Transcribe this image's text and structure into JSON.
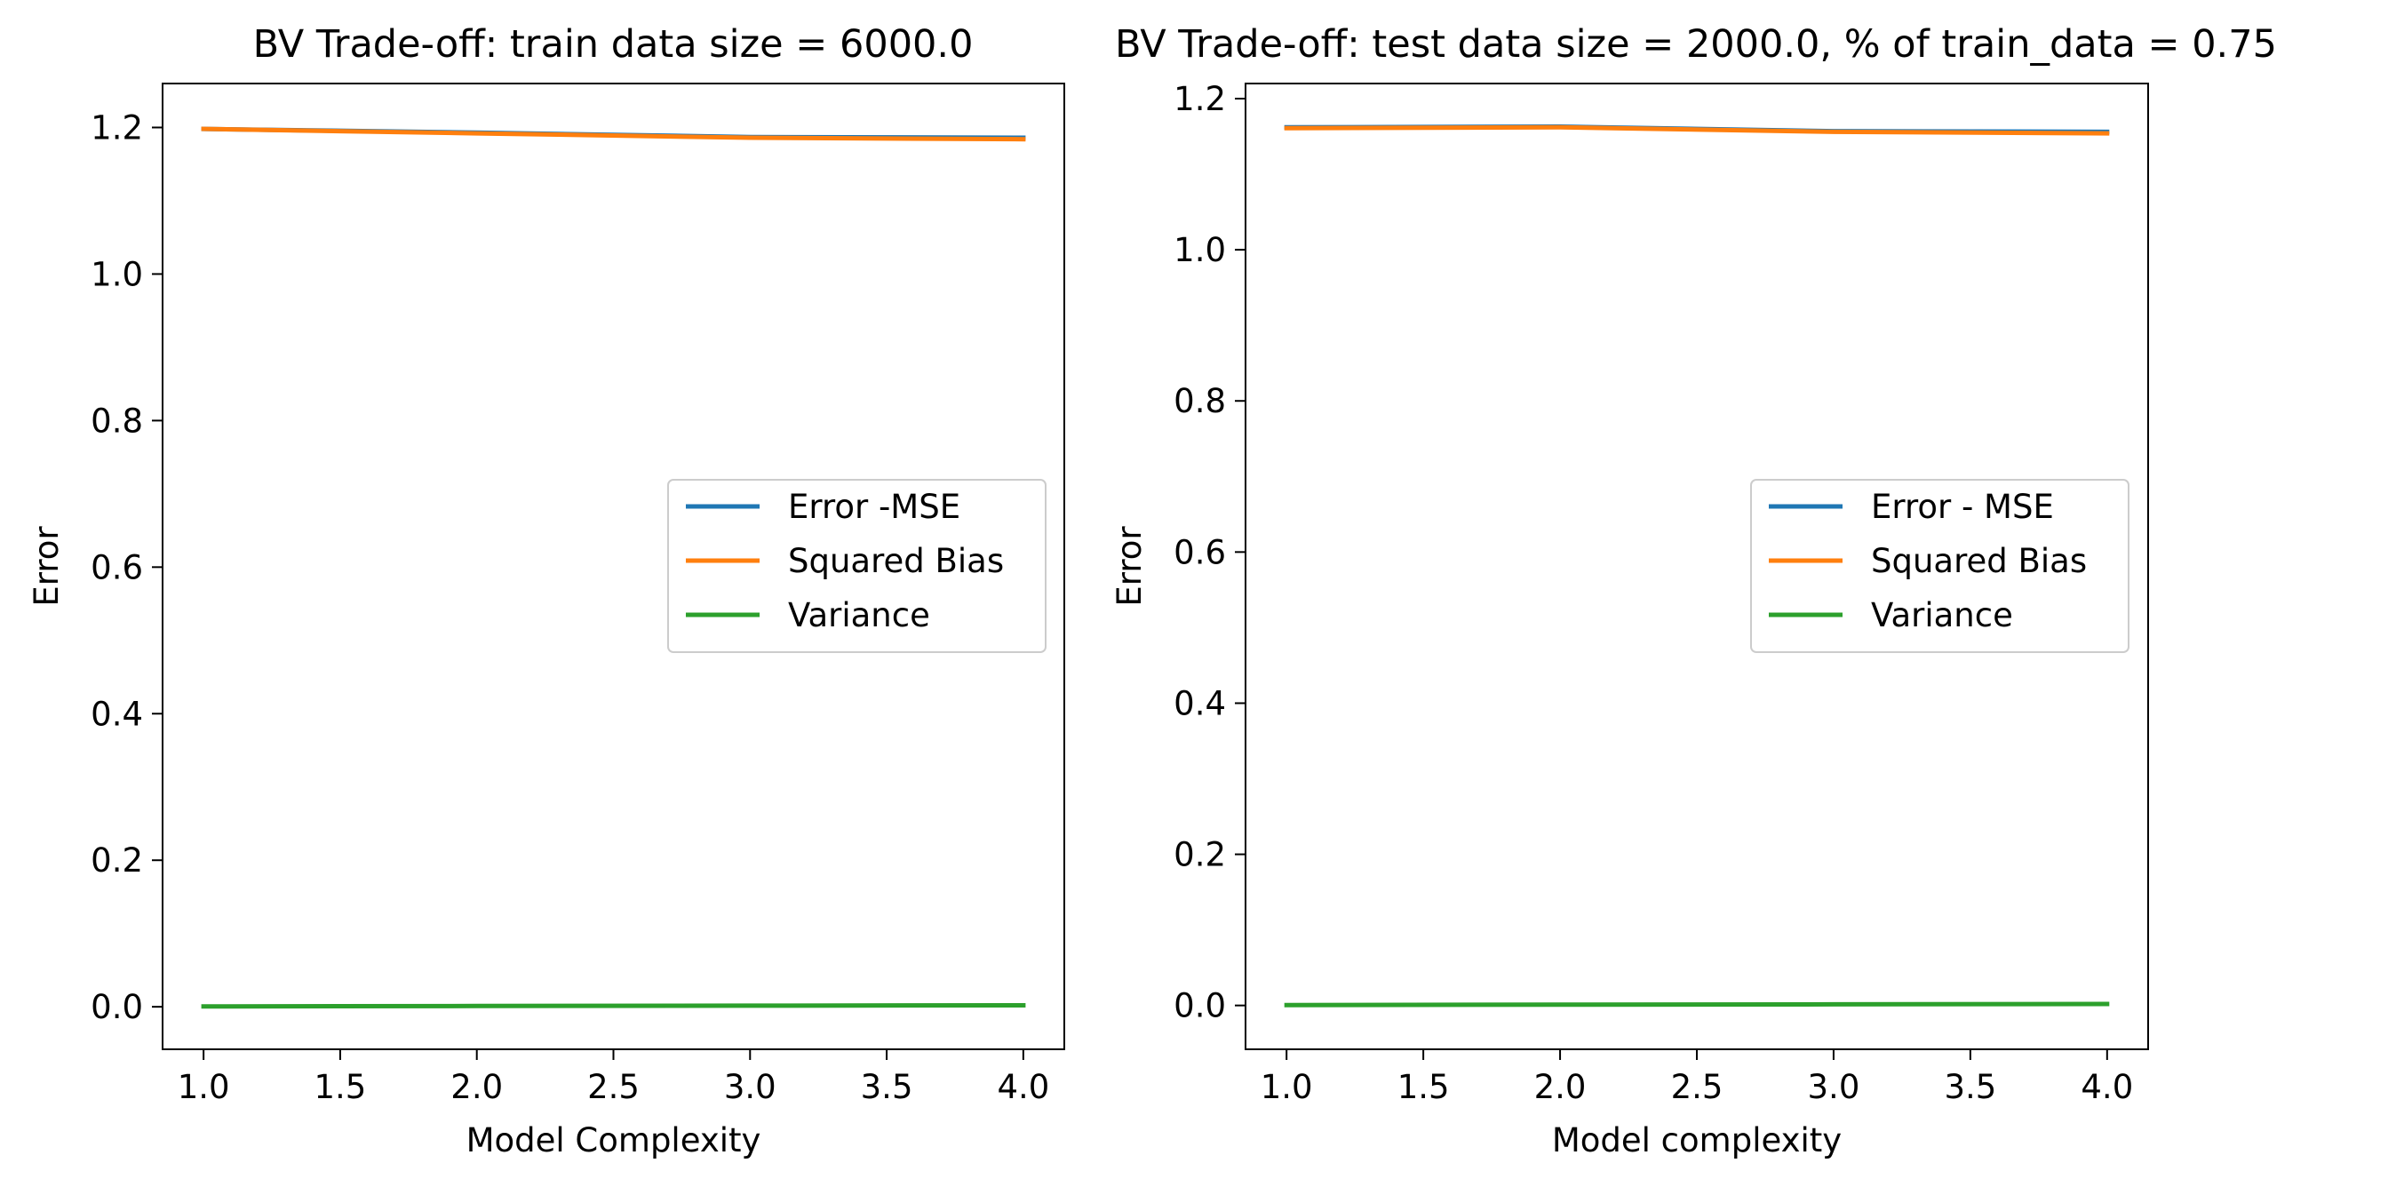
{
  "chart_data": [
    {
      "type": "line",
      "title": "BV Trade-off: train data size = 6000.0",
      "xlabel": "Model Complexity",
      "ylabel": "Error",
      "xlim": [
        0.85,
        4.15
      ],
      "ylim": [
        -0.058,
        1.26
      ],
      "xticks": [
        "1.0",
        "1.5",
        "2.0",
        "2.5",
        "3.0",
        "3.5",
        "4.0"
      ],
      "yticks": [
        "0.0",
        "0.2",
        "0.4",
        "0.6",
        "0.8",
        "1.0",
        "1.2"
      ],
      "x": [
        1,
        2,
        3,
        4
      ],
      "grid": false,
      "legend_position": "center-right",
      "series": [
        {
          "name": "Error -MSE",
          "color": "#1f77b4",
          "values": [
            1.198,
            1.193,
            1.187,
            1.186
          ]
        },
        {
          "name": "Squared Bias",
          "color": "#ff7f0e",
          "values": [
            1.198,
            1.192,
            1.186,
            1.184
          ]
        },
        {
          "name": "Variance",
          "color": "#2ca02c",
          "values": [
            0.0005,
            0.001,
            0.0015,
            0.002
          ]
        }
      ]
    },
    {
      "type": "line",
      "title": "BV Trade-off: test data size = 2000.0, % of train_data = 0.75",
      "xlabel": "Model complexity",
      "ylabel": "Error",
      "xlim": [
        0.85,
        4.15
      ],
      "ylim": [
        -0.058,
        1.22
      ],
      "xticks": [
        "1.0",
        "1.5",
        "2.0",
        "2.5",
        "3.0",
        "3.5",
        "4.0"
      ],
      "yticks": [
        "0.0",
        "0.2",
        "0.4",
        "0.6",
        "0.8",
        "1.0",
        "1.2"
      ],
      "x": [
        1,
        2,
        3,
        4
      ],
      "grid": false,
      "legend_position": "center-right",
      "series": [
        {
          "name": "Error - MSE",
          "color": "#1f77b4",
          "values": [
            1.162,
            1.163,
            1.157,
            1.156
          ]
        },
        {
          "name": "Squared Bias",
          "color": "#ff7f0e",
          "values": [
            1.161,
            1.162,
            1.156,
            1.154
          ]
        },
        {
          "name": "Variance",
          "color": "#2ca02c",
          "values": [
            0.0005,
            0.001,
            0.0015,
            0.002
          ]
        }
      ]
    }
  ]
}
